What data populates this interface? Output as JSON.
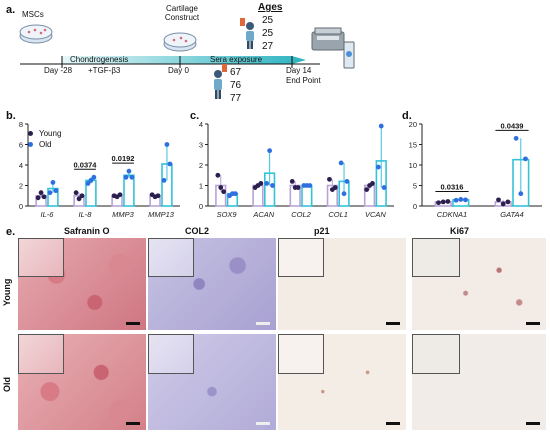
{
  "panels": {
    "a": "a.",
    "b": "b.",
    "c": "c.",
    "d": "d.",
    "e": "e."
  },
  "timeline": {
    "mscs": "MSCs",
    "cartilage": [
      "Cartilage",
      "Construct"
    ],
    "chondrogenesis": "Chondrogenesis",
    "tgf": "+TGF-β3",
    "sera": "Sera exposure",
    "day_start": "Day -28",
    "day_zero": "Day 0",
    "day_end": "Day 14",
    "end_point": "End Point",
    "ages_title": "Ages",
    "young_ages": [
      "25",
      "25",
      "27"
    ],
    "old_ages": [
      "67",
      "76",
      "77"
    ]
  },
  "legend": {
    "young": "Young",
    "old": "Old"
  },
  "colors": {
    "young": "#2b1f4f",
    "old": "#2f6fe0",
    "bar_young": "#b9a3d6",
    "bar_old": "#33c3d8",
    "timeline": "#2bb3c0"
  },
  "chart_data": [
    {
      "type": "bar",
      "panel": "b",
      "categories": [
        "IL-6",
        "IL-8",
        "MMP3",
        "MMP13"
      ],
      "ylim": [
        0,
        8
      ],
      "yticks": [
        "0",
        "2",
        "4",
        "6",
        "8"
      ],
      "series": [
        {
          "name": "Young",
          "values": [
            1.0,
            1.0,
            1.0,
            1.0
          ],
          "points": [
            [
              0.8,
              1.3,
              0.9
            ],
            [
              1.3,
              0.7,
              1.0
            ],
            [
              1.0,
              0.9,
              1.1
            ],
            [
              1.1,
              0.9,
              1.0
            ]
          ]
        },
        {
          "name": "Old",
          "values": [
            1.7,
            2.5,
            3.0,
            4.1
          ],
          "points": [
            [
              1.3,
              2.3,
              1.5
            ],
            [
              2.2,
              2.5,
              2.8
            ],
            [
              2.8,
              3.4,
              2.8
            ],
            [
              2.5,
              6.0,
              4.1
            ]
          ]
        }
      ],
      "annotations": [
        {
          "category": "IL-8",
          "text": "0.0374"
        },
        {
          "category": "MMP3",
          "text": "0.0192"
        }
      ]
    },
    {
      "type": "bar",
      "panel": "c",
      "categories": [
        "SOX9",
        "ACAN",
        "COL2",
        "COL1",
        "VCAN"
      ],
      "ylim": [
        0,
        4
      ],
      "yticks": [
        "0",
        "1",
        "2",
        "3",
        "4"
      ],
      "series": [
        {
          "name": "Young",
          "values": [
            1.0,
            1.0,
            1.0,
            1.0,
            1.0
          ],
          "points": [
            [
              1.5,
              0.9,
              0.7
            ],
            [
              0.9,
              1.0,
              1.1
            ],
            [
              1.2,
              0.9,
              0.9
            ],
            [
              1.3,
              0.8,
              0.9
            ],
            [
              0.8,
              1.0,
              1.1
            ]
          ]
        },
        {
          "name": "Old",
          "values": [
            0.6,
            1.6,
            1.0,
            1.2,
            2.2
          ],
          "points": [
            [
              0.5,
              0.6,
              0.6
            ],
            [
              1.1,
              2.7,
              1.0
            ],
            [
              1.0,
              1.0,
              1.0
            ],
            [
              2.1,
              0.6,
              1.2
            ],
            [
              1.9,
              3.9,
              0.9
            ]
          ]
        }
      ]
    },
    {
      "type": "bar",
      "panel": "d",
      "categories": [
        "CDKNA1",
        "GATA4"
      ],
      "ylim": [
        0,
        20
      ],
      "yticks": [
        "0",
        "5",
        "10",
        "15",
        "20"
      ],
      "series": [
        {
          "name": "Young",
          "values": [
            1.0,
            1.0
          ],
          "points": [
            [
              0.8,
              1.0,
              1.1
            ],
            [
              1.5,
              0.5,
              1.0
            ]
          ]
        },
        {
          "name": "Old",
          "values": [
            1.5,
            11.3
          ],
          "points": [
            [
              1.4,
              1.6,
              1.5
            ],
            [
              16.5,
              3.0,
              11.5
            ]
          ]
        }
      ],
      "annotations": [
        {
          "category": "CDKNA1",
          "text": "0.0316"
        },
        {
          "category": "GATA4",
          "text": "0.0439"
        }
      ]
    }
  ],
  "histology": {
    "columns": [
      "Safranin O",
      "COL2",
      "p21",
      "Ki67"
    ],
    "rows": [
      "Young",
      "Old"
    ]
  }
}
